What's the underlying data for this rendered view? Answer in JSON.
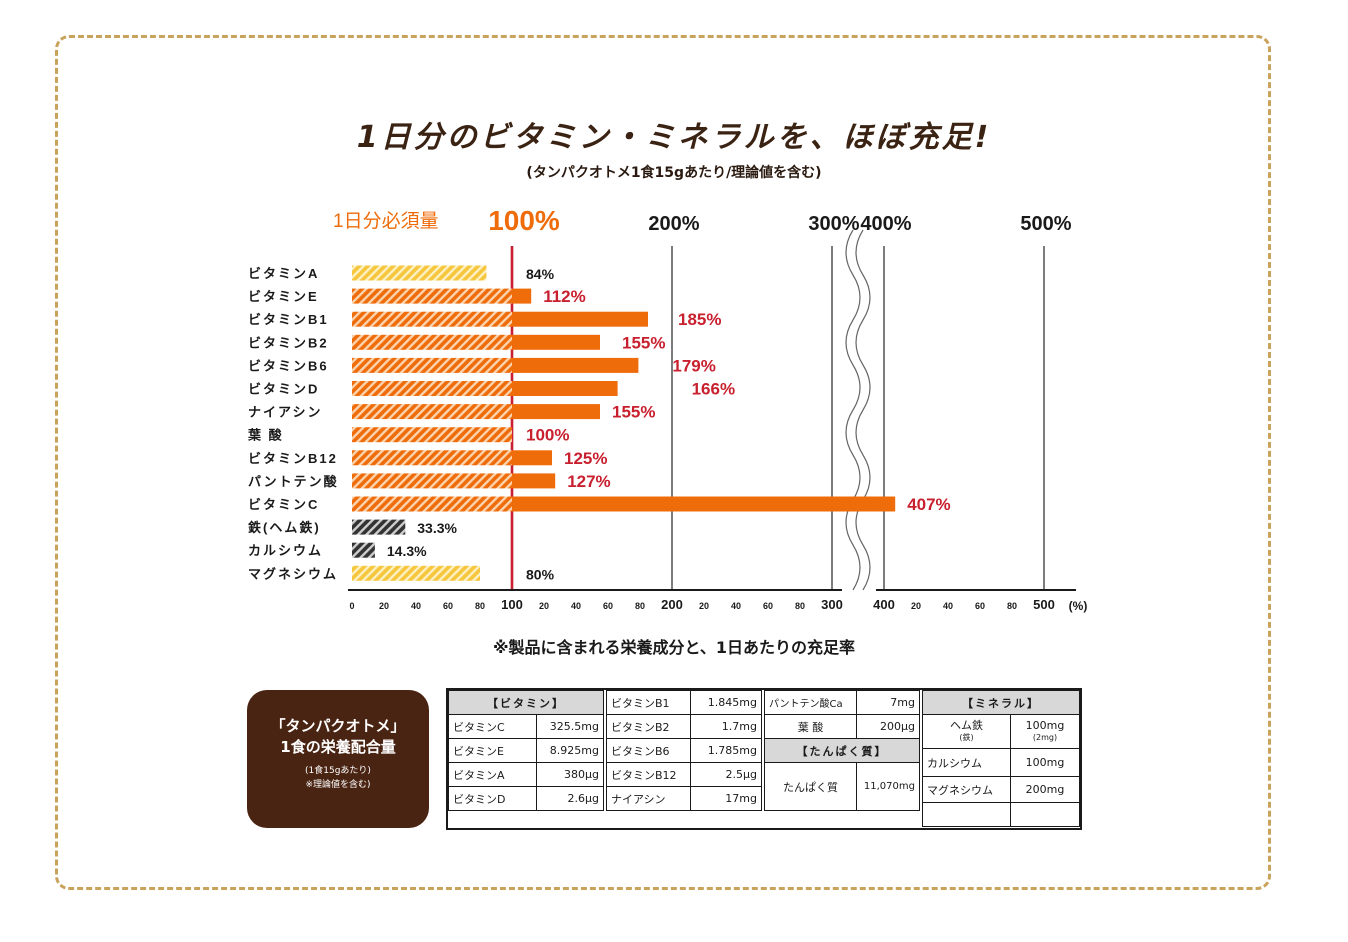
{
  "title": "1日分のビタミン・ミネラルを、ほぼ充足!",
  "subtitle": "(タンパクオトメ1食15gあたり/理論値を含む)",
  "reference_label": "1日分必須量",
  "chart_data": {
    "type": "bar",
    "orientation": "horizontal",
    "categories": [
      "ビタミンA",
      "ビタミンE",
      "ビタミンB1",
      "ビタミンB2",
      "ビタミンB6",
      "ビタミンD",
      "ナイアシン",
      "葉酸",
      "ビタミンB12",
      "パントテン酸",
      "ビタミンC",
      "鉄(ヘム鉄)",
      "カルシウム",
      "マグネシウム"
    ],
    "category_display": [
      "ビタミンA",
      "ビタミンE",
      "ビタミンB1",
      "ビタミンB2",
      "ビタミンB6",
      "ビタミンD",
      "ナイアシン",
      "葉 酸",
      "ビタミンB12",
      "パントテン酸",
      "ビタミンC",
      "鉄(ヘム鉄)",
      "カルシウム",
      "マグネシウム"
    ],
    "values": [
      84,
      112,
      185,
      155,
      179,
      166,
      155,
      100,
      125,
      127,
      407,
      33.3,
      14.3,
      80
    ],
    "value_labels": [
      "84%",
      "112%",
      "185%",
      "155%",
      "179%",
      "166%",
      "155%",
      "100%",
      "125%",
      "127%",
      "407%",
      "33.3%",
      "14.3%",
      "80%"
    ],
    "x_unit": "(%)",
    "x_ticks_major": [
      "100",
      "200",
      "300",
      "400",
      "500"
    ],
    "x_ticks_minor": [
      "0",
      "20",
      "40",
      "60",
      "80"
    ],
    "top_ticks": [
      "100%",
      "200%",
      "300%",
      "400%",
      "500%"
    ],
    "reference_line": 100,
    "axis_break": [
      300,
      400
    ],
    "xlim": [
      0,
      500
    ],
    "colors": {
      "orange": "#ef6c0b",
      "hatch_orange": "#f49a4b",
      "yellow": "#f6c63c",
      "dark": "#333333",
      "reference": "#c8202e",
      "high_label": "#c8202e"
    }
  },
  "footnote": "※製品に含まれる栄養成分と、1日あたりの充足率",
  "badge": {
    "line1": "「タンパクオトメ」",
    "line2": "1食の栄養配合量",
    "line3": "(1食15gあたり)",
    "line4": "※理論値を含む)"
  },
  "nutrition": {
    "vitamin_header": "【ビタミン】",
    "protein_header": "【たんぱく質】",
    "mineral_header": "【ミネラル】",
    "col1": [
      [
        "ビタミンC",
        "325.5mg"
      ],
      [
        "ビタミンE",
        "8.925mg"
      ],
      [
        "ビタミンA",
        "380μg"
      ],
      [
        "ビタミンD",
        "2.6μg"
      ]
    ],
    "col2": [
      [
        "ビタミンB1",
        "1.845mg"
      ],
      [
        "ビタミンB2",
        "1.7mg"
      ],
      [
        "ビタミンB6",
        "1.785mg"
      ],
      [
        "ビタミンB12",
        "2.5μg"
      ],
      [
        "ナイアシン",
        "17mg"
      ]
    ],
    "col3": [
      [
        "パントテン酸Ca",
        "7mg"
      ],
      [
        "葉 酸",
        "200μg"
      ]
    ],
    "protein": [
      "たんぱく質",
      "11,070mg"
    ],
    "minerals": {
      "iron_name": "ヘム鉄",
      "iron_sub": "(鉄)",
      "iron_value": "100mg",
      "iron_value_sub": "(2mg)",
      "rows": [
        [
          "カルシウム",
          "100mg"
        ],
        [
          "マグネシウム",
          "200mg"
        ]
      ]
    }
  }
}
